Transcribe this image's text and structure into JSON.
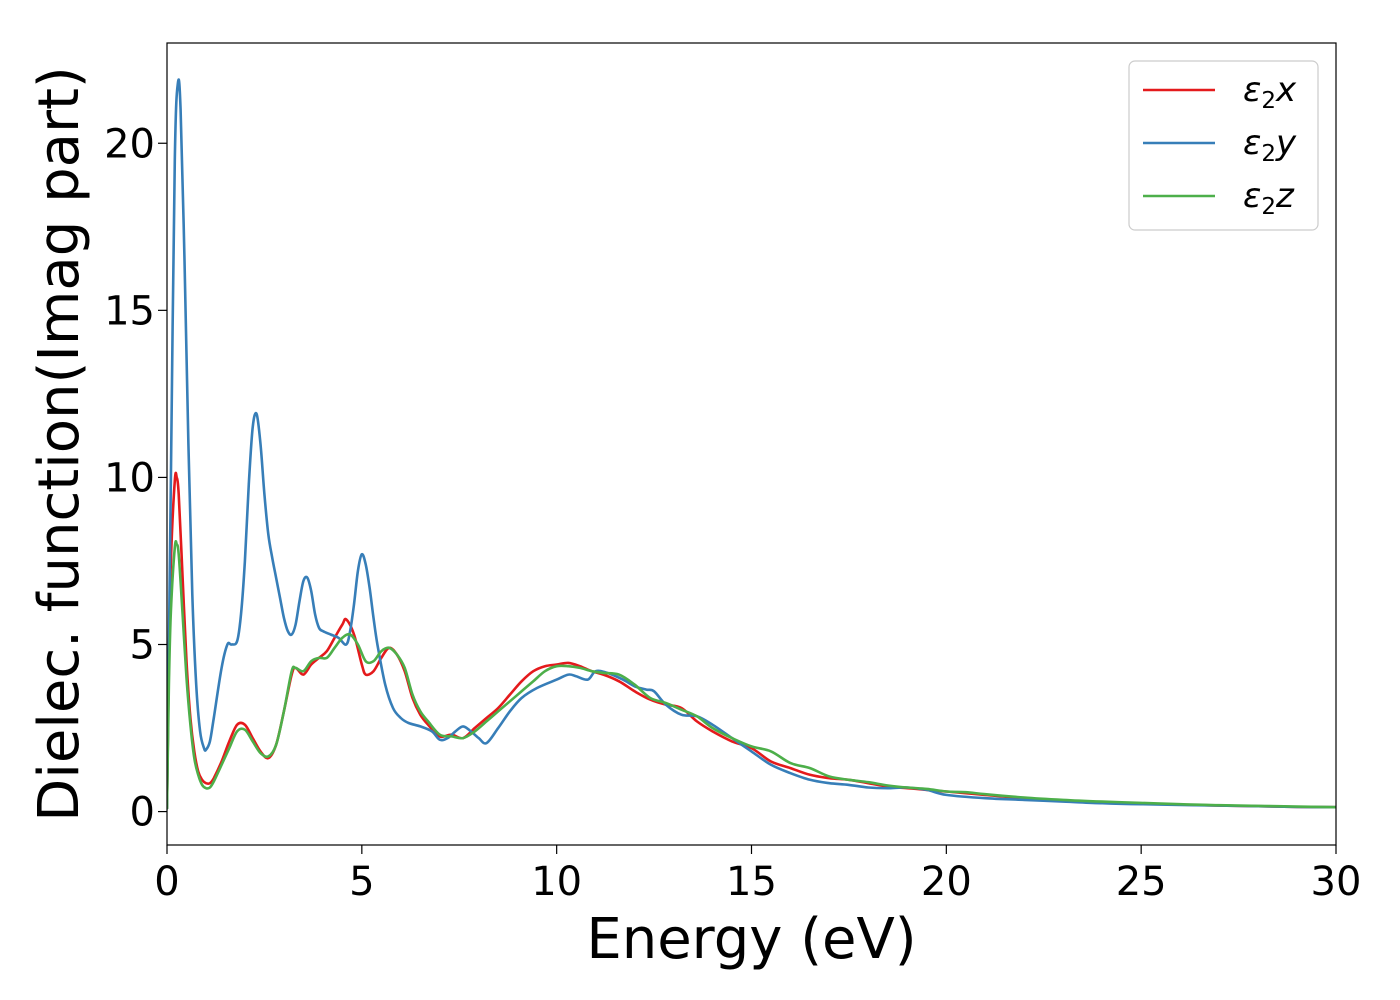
{
  "chart_data": {
    "type": "line",
    "title": "",
    "xlabel": "Energy (eV)",
    "ylabel": "Dielec. function(Imag part)",
    "xlim": [
      0,
      30
    ],
    "ylim": [
      -1,
      23
    ],
    "xticks": [
      0,
      5,
      10,
      15,
      20,
      25,
      30
    ],
    "yticks": [
      0,
      5,
      10,
      15,
      20
    ],
    "grid": false,
    "legend_position": "top-right",
    "series": [
      {
        "name": "ε₂x",
        "legend_base": "ε",
        "legend_sub": "2",
        "legend_suffix": "x",
        "color": "#e41a1c",
        "x": [
          0,
          0.05,
          0.1,
          0.2,
          0.25,
          0.3,
          0.4,
          0.5,
          0.6,
          0.7,
          0.8,
          0.9,
          1.0,
          1.1,
          1.2,
          1.4,
          1.6,
          1.8,
          2.0,
          2.2,
          2.4,
          2.6,
          2.8,
          3.0,
          3.2,
          3.3,
          3.5,
          3.7,
          3.9,
          4.1,
          4.3,
          4.5,
          4.6,
          4.8,
          5.0,
          5.1,
          5.3,
          5.5,
          5.7,
          5.9,
          6.1,
          6.3,
          6.5,
          6.7,
          7.0,
          7.3,
          7.6,
          7.9,
          8.2,
          8.5,
          8.8,
          9.1,
          9.4,
          9.7,
          10.0,
          10.3,
          10.6,
          10.9,
          11.2,
          11.6,
          12.0,
          12.4,
          12.8,
          13.2,
          13.6,
          14.0,
          14.5,
          15.0,
          15.5,
          16.0,
          16.5,
          17.0,
          17.5,
          18.0,
          18.5,
          19.0,
          19.5,
          20.0,
          20.5,
          21.0,
          22.0,
          23.0,
          24.0,
          25.0,
          26.0,
          27.0,
          28.0,
          29.0,
          30.0
        ],
        "values": [
          0.1,
          4.5,
          7.5,
          9.9,
          10.0,
          9.5,
          7.0,
          4.5,
          2.8,
          1.8,
          1.2,
          0.95,
          0.85,
          0.85,
          1.0,
          1.5,
          2.1,
          2.6,
          2.6,
          2.2,
          1.8,
          1.6,
          2.0,
          3.0,
          4.1,
          4.3,
          4.1,
          4.4,
          4.6,
          4.8,
          5.2,
          5.6,
          5.75,
          5.3,
          4.4,
          4.1,
          4.2,
          4.6,
          4.9,
          4.7,
          4.2,
          3.4,
          2.9,
          2.6,
          2.25,
          2.3,
          2.2,
          2.5,
          2.8,
          3.1,
          3.5,
          3.9,
          4.2,
          4.35,
          4.4,
          4.45,
          4.35,
          4.2,
          4.1,
          3.9,
          3.6,
          3.35,
          3.2,
          3.1,
          2.7,
          2.4,
          2.1,
          1.9,
          1.5,
          1.3,
          1.1,
          1.0,
          0.95,
          0.85,
          0.75,
          0.7,
          0.65,
          0.6,
          0.55,
          0.5,
          0.4,
          0.33,
          0.28,
          0.24,
          0.21,
          0.18,
          0.16,
          0.14,
          0.13
        ]
      },
      {
        "name": "ε₂y",
        "legend_base": "ε",
        "legend_sub": "2",
        "legend_suffix": "y",
        "color": "#377eb8",
        "x": [
          0,
          0.05,
          0.1,
          0.2,
          0.28,
          0.35,
          0.45,
          0.55,
          0.65,
          0.75,
          0.85,
          0.95,
          1.0,
          1.1,
          1.2,
          1.4,
          1.55,
          1.65,
          1.8,
          1.9,
          2.0,
          2.1,
          2.2,
          2.3,
          2.4,
          2.5,
          2.6,
          2.7,
          2.8,
          2.9,
          3.0,
          3.1,
          3.2,
          3.3,
          3.4,
          3.5,
          3.6,
          3.7,
          3.8,
          3.9,
          4.0,
          4.2,
          4.4,
          4.6,
          4.7,
          4.8,
          4.9,
          5.0,
          5.1,
          5.2,
          5.3,
          5.4,
          5.6,
          5.8,
          6.0,
          6.2,
          6.5,
          6.8,
          7.0,
          7.2,
          7.4,
          7.6,
          7.8,
          8.0,
          8.2,
          8.5,
          8.8,
          9.1,
          9.5,
          10.0,
          10.3,
          10.5,
          10.8,
          11.0,
          11.3,
          11.7,
          12.0,
          12.3,
          12.5,
          12.8,
          13.2,
          13.6,
          14.0,
          14.5,
          15.0,
          15.5,
          16.0,
          16.5,
          17.0,
          17.5,
          18.0,
          18.5,
          19.0,
          19.5,
          20.0,
          21.0,
          22.0,
          23.0,
          24.0,
          25.0,
          26.0,
          27.0,
          28.0,
          29.0,
          30.0
        ],
        "values": [
          0.1,
          5.0,
          10.0,
          19.5,
          21.8,
          21.0,
          16.5,
          11.0,
          6.5,
          3.8,
          2.4,
          1.9,
          1.85,
          2.1,
          2.8,
          4.3,
          5.0,
          5.0,
          5.1,
          5.9,
          7.5,
          9.8,
          11.5,
          11.9,
          11.0,
          9.5,
          8.3,
          7.6,
          7.0,
          6.4,
          5.8,
          5.4,
          5.3,
          5.6,
          6.3,
          6.9,
          7.0,
          6.6,
          5.9,
          5.5,
          5.4,
          5.3,
          5.2,
          5.0,
          5.4,
          6.2,
          7.2,
          7.7,
          7.4,
          6.7,
          5.8,
          5.0,
          3.8,
          3.1,
          2.8,
          2.65,
          2.55,
          2.4,
          2.15,
          2.2,
          2.4,
          2.55,
          2.4,
          2.2,
          2.05,
          2.5,
          3.0,
          3.4,
          3.7,
          3.95,
          4.1,
          4.05,
          3.95,
          4.2,
          4.15,
          3.95,
          3.75,
          3.65,
          3.6,
          3.2,
          2.9,
          2.85,
          2.6,
          2.2,
          1.8,
          1.4,
          1.15,
          0.95,
          0.85,
          0.8,
          0.72,
          0.7,
          0.72,
          0.65,
          0.5,
          0.4,
          0.35,
          0.3,
          0.25,
          0.22,
          0.2,
          0.18,
          0.16,
          0.14,
          0.13
        ]
      },
      {
        "name": "ε₂z",
        "legend_base": "ε",
        "legend_sub": "2",
        "legend_suffix": "z",
        "color": "#4daf4a",
        "x": [
          0,
          0.05,
          0.1,
          0.2,
          0.25,
          0.3,
          0.4,
          0.5,
          0.6,
          0.7,
          0.8,
          0.9,
          1.0,
          1.1,
          1.2,
          1.4,
          1.6,
          1.8,
          2.0,
          2.2,
          2.4,
          2.6,
          2.8,
          3.0,
          3.2,
          3.3,
          3.5,
          3.7,
          3.9,
          4.1,
          4.3,
          4.5,
          4.7,
          4.9,
          5.1,
          5.3,
          5.5,
          5.7,
          5.9,
          6.1,
          6.3,
          6.5,
          6.7,
          7.0,
          7.3,
          7.6,
          7.9,
          8.2,
          8.5,
          8.8,
          9.1,
          9.4,
          9.7,
          10.0,
          10.3,
          10.6,
          10.9,
          11.2,
          11.6,
          12.0,
          12.4,
          12.8,
          13.2,
          13.6,
          14.0,
          14.5,
          15.0,
          15.5,
          16.0,
          16.5,
          17.0,
          17.5,
          18.0,
          18.5,
          19.0,
          19.5,
          20.0,
          20.5,
          21.0,
          22.0,
          23.0,
          24.0,
          25.0,
          26.0,
          27.0,
          28.0,
          29.0,
          30.0
        ],
        "values": [
          0.1,
          3.8,
          6.0,
          7.9,
          8.0,
          7.7,
          5.9,
          4.0,
          2.6,
          1.6,
          1.1,
          0.8,
          0.7,
          0.72,
          0.9,
          1.4,
          1.9,
          2.4,
          2.45,
          2.1,
          1.75,
          1.65,
          2.0,
          3.0,
          4.2,
          4.3,
          4.2,
          4.5,
          4.6,
          4.6,
          4.9,
          5.2,
          5.3,
          5.0,
          4.5,
          4.5,
          4.8,
          4.9,
          4.7,
          4.3,
          3.5,
          3.0,
          2.7,
          2.3,
          2.25,
          2.2,
          2.4,
          2.7,
          3.0,
          3.3,
          3.6,
          3.9,
          4.2,
          4.35,
          4.35,
          4.3,
          4.2,
          4.15,
          4.1,
          3.8,
          3.4,
          3.25,
          3.05,
          2.85,
          2.5,
          2.2,
          1.95,
          1.8,
          1.45,
          1.3,
          1.05,
          0.95,
          0.88,
          0.78,
          0.72,
          0.68,
          0.6,
          0.58,
          0.52,
          0.42,
          0.35,
          0.3,
          0.26,
          0.22,
          0.19,
          0.17,
          0.15,
          0.13
        ]
      }
    ]
  }
}
